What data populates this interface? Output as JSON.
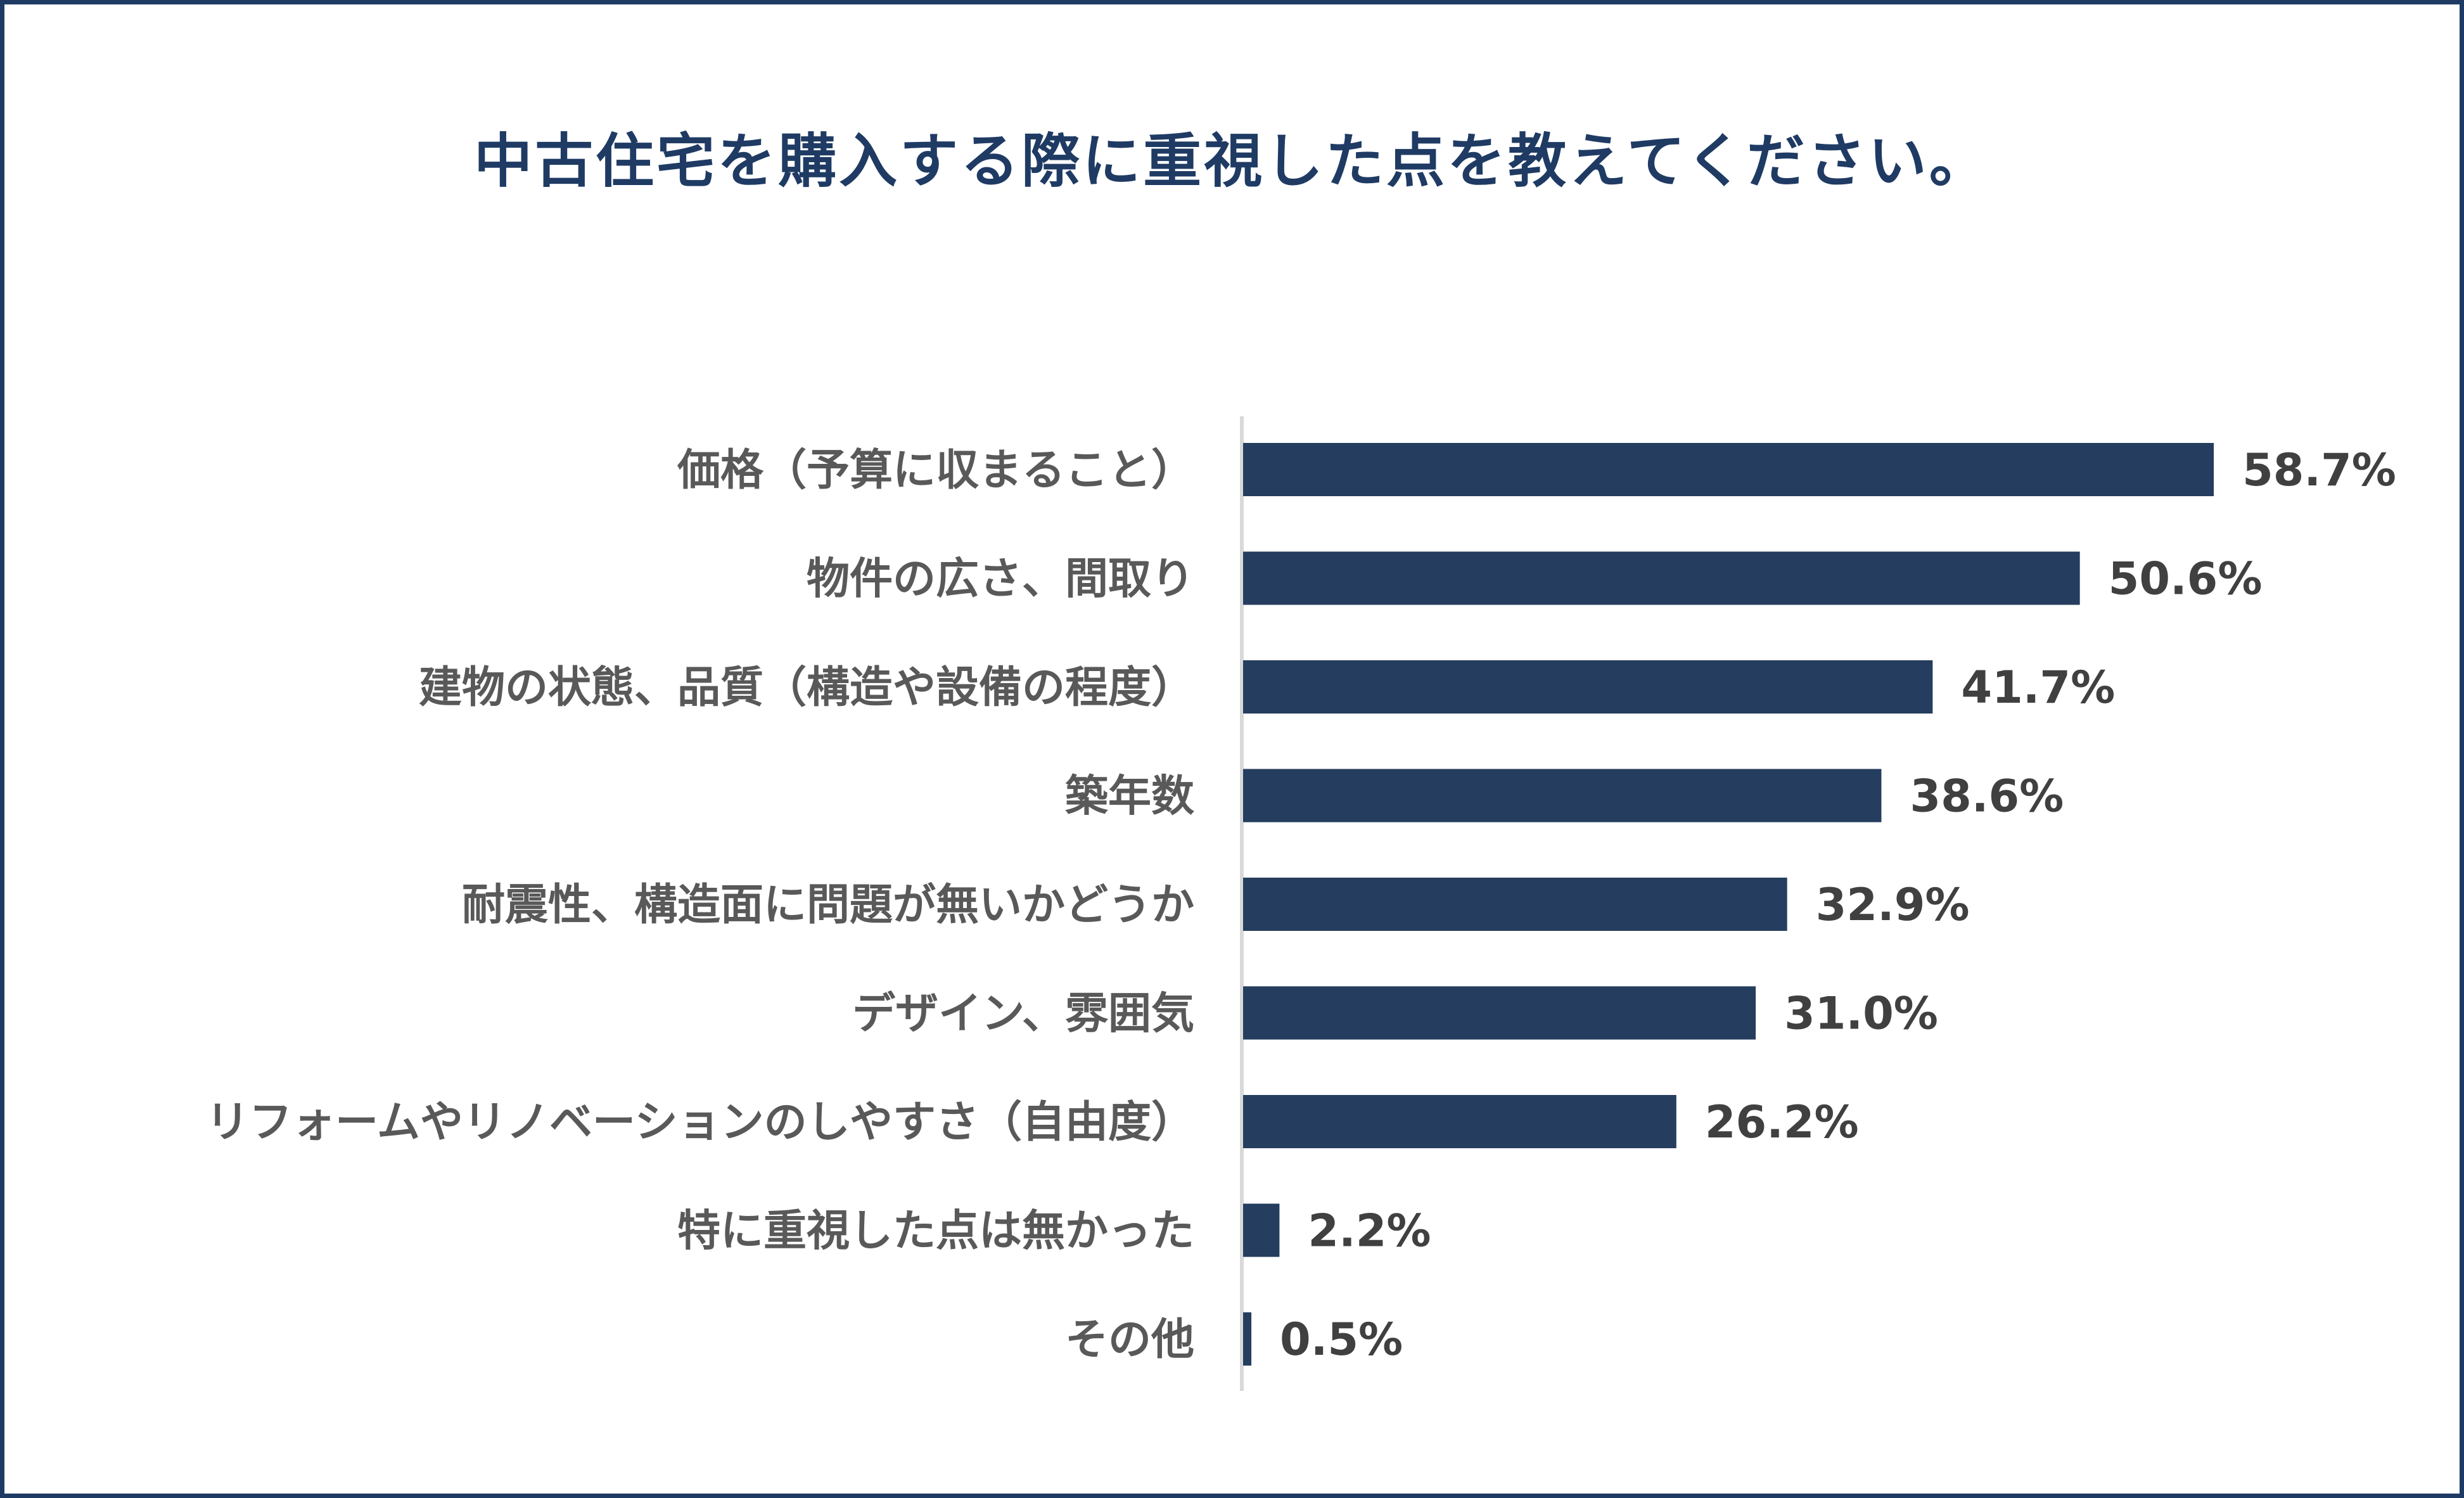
{
  "chart_data": {
    "type": "bar",
    "orientation": "horizontal",
    "title": "中古住宅を購入する際に重視した点を教えてください。",
    "categories": [
      "価格（予算に収まること）",
      "物件の広さ、間取り",
      "建物の状態、品質（構造や設備の程度）",
      "築年数",
      "耐震性、構造面に問題が無いかどうか",
      "デザイン、雰囲気",
      "リフォームやリノベーションのしやすさ（自由度）",
      "特に重視した点は無かった",
      "その他"
    ],
    "values": [
      58.7,
      50.6,
      41.7,
      38.6,
      32.9,
      31.0,
      26.2,
      2.2,
      0.5
    ],
    "labels": [
      "58.7%",
      "50.6%",
      "41.7%",
      "38.6%",
      "32.9%",
      "31.0%",
      "26.2%",
      "2.2%",
      "0.5%"
    ],
    "unit": "%",
    "xlabel": "",
    "ylabel": "",
    "xlim": [
      0,
      70
    ],
    "grid": false,
    "legend": "none",
    "colors": {
      "bar": "#253d5e",
      "title": "#1f3b64",
      "border": "#1f3b64",
      "axis": "#d9d9d9"
    }
  }
}
